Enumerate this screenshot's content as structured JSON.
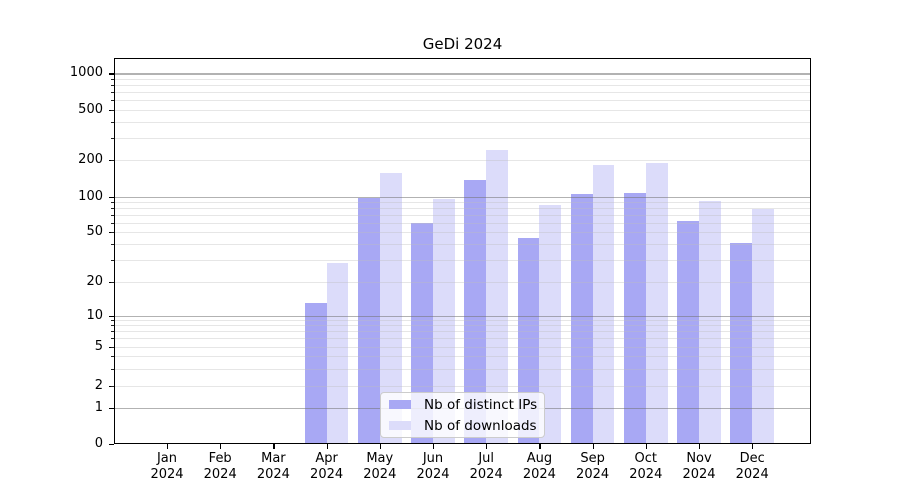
{
  "chart_data": {
    "type": "bar",
    "title": "GeDi 2024",
    "categories": [
      "Jan 2024",
      "Feb 2024",
      "Mar 2024",
      "Apr 2024",
      "May 2024",
      "Jun 2024",
      "Jul 2024",
      "Aug 2024",
      "Sep 2024",
      "Oct 2024",
      "Nov 2024",
      "Dec 2024"
    ],
    "series": [
      {
        "name": "Nb of distinct IPs",
        "color": "#a8a8f4",
        "values": [
          0,
          0,
          0,
          13,
          97,
          60,
          135,
          45,
          105,
          106,
          62,
          41
        ]
      },
      {
        "name": "Nb of downloads",
        "color": "#dcdcfa",
        "values": [
          0,
          0,
          0,
          28,
          155,
          95,
          240,
          85,
          180,
          186,
          92,
          78
        ]
      }
    ],
    "y_axis": {
      "scale": "symlog",
      "tick_values": [
        0,
        1,
        2,
        5,
        10,
        20,
        50,
        100,
        200,
        500,
        1000
      ],
      "tick_labels": [
        "0",
        "1",
        "2",
        "5",
        "10",
        "20",
        "50",
        "100",
        "200",
        "500",
        "1000"
      ],
      "range": [
        0,
        1400
      ]
    },
    "x_axis": {
      "label": ""
    },
    "grid": true,
    "legend_position": "lower-center"
  }
}
